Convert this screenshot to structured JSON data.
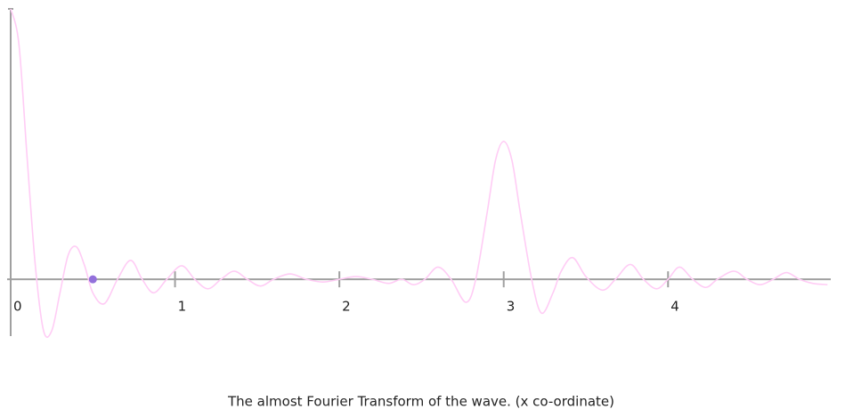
{
  "chart_data": {
    "type": "line",
    "caption": "The almost Fourier Transform of the wave. (x co-ordinate)",
    "x": [
      0,
      0.05,
      0.1,
      0.15,
      0.2,
      0.25,
      0.3,
      0.35,
      0.4,
      0.45,
      0.5,
      0.57,
      0.65,
      0.73,
      0.8,
      0.87,
      0.95,
      1.04,
      1.12,
      1.2,
      1.28,
      1.36,
      1.44,
      1.52,
      1.6,
      1.7,
      1.8,
      1.9,
      2.0,
      2.1,
      2.2,
      2.3,
      2.38,
      2.45,
      2.52,
      2.6,
      2.68,
      2.77,
      2.83,
      2.9,
      2.95,
      3.0,
      3.05,
      3.1,
      3.17,
      3.23,
      3.3,
      3.35,
      3.42,
      3.5,
      3.6,
      3.68,
      3.77,
      3.85,
      3.93,
      4.0,
      4.07,
      4.15,
      4.23,
      4.3,
      4.4,
      4.48,
      4.56,
      4.64,
      4.72,
      4.8,
      4.88,
      4.97
    ],
    "series": [
      {
        "color": "#ffccf5",
        "values": [
          1,
          0.87,
          0.45,
          0.05,
          -0.19,
          -0.19,
          -0.05,
          0.09,
          0.12,
          0.05,
          -0.05,
          -0.09,
          0,
          0.07,
          0,
          -0.05,
          0,
          0.05,
          0,
          -0.035,
          0,
          0.03,
          0,
          -0.025,
          0,
          0.02,
          0,
          -0.01,
          0,
          0.01,
          0,
          -0.015,
          0,
          -0.02,
          0,
          0.045,
          0,
          -0.085,
          0,
          0.25,
          0.44,
          0.51,
          0.44,
          0.25,
          0,
          -0.125,
          -0.05,
          0.03,
          0.08,
          0.01,
          -0.04,
          0,
          0.055,
          0,
          -0.035,
          0,
          0.045,
          0,
          -0.03,
          0,
          0.03,
          0,
          -0.02,
          0,
          0.025,
          0,
          -0.015,
          -0.02
        ]
      }
    ],
    "marker": {
      "x": 0.5,
      "y": 0,
      "color": "#9370db"
    },
    "xlim": [
      0,
      4.99
    ],
    "ylim": [
      -0.21,
      1
    ],
    "xticks": [
      0,
      1,
      2,
      3,
      4
    ]
  }
}
